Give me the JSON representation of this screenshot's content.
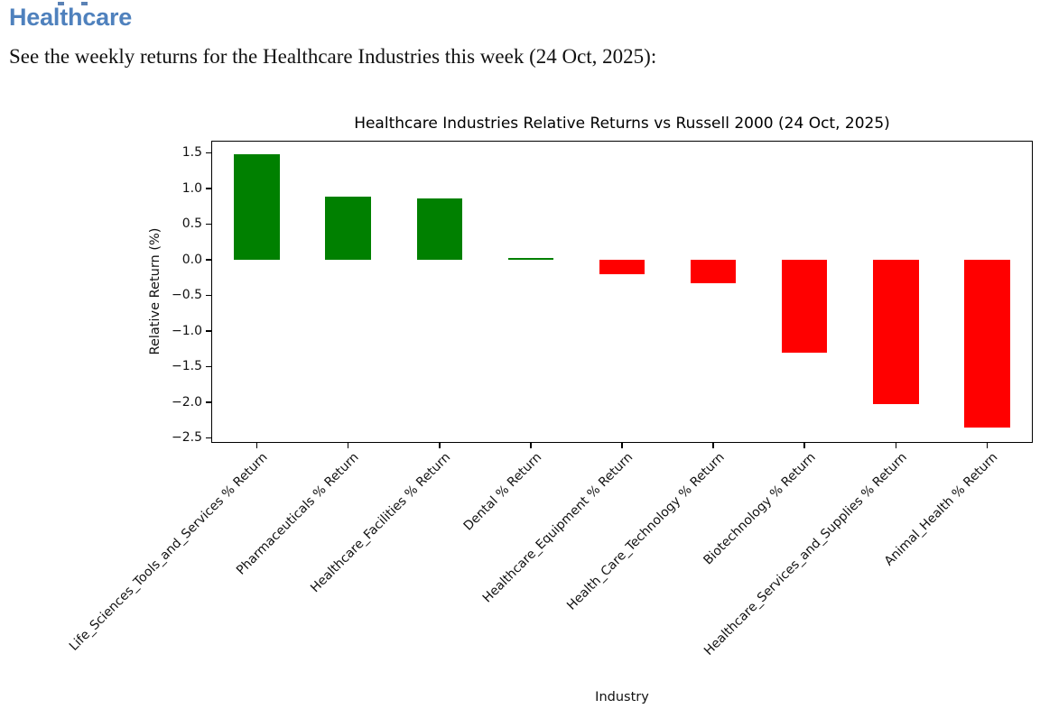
{
  "document": {
    "heading": "Healthcare",
    "intro": "See the weekly returns for the Healthcare Industries this week (24 Oct, 2025):"
  },
  "chart_data": {
    "type": "bar",
    "title": "Healthcare Industries Relative Returns vs Russell 2000 (24 Oct, 2025)",
    "xlabel": "Industry",
    "ylabel": "Relative Return (%)",
    "categories": [
      "Life_Sciences_Tools_and_Services % Return",
      "Pharmaceuticals % Return",
      "Healthcare_Facilities % Return",
      "Dental % Return",
      "Healthcare_Equipment % Return",
      "Health_Care_Technology % Return",
      "Biotechnology % Return",
      "Healthcare_Services_and_Supplies % Return",
      "Animal_Health % Return"
    ],
    "values": [
      1.48,
      0.89,
      0.86,
      0.03,
      -0.2,
      -0.33,
      -1.3,
      -2.03,
      -2.35
    ],
    "yticks": [
      1.5,
      1.0,
      0.5,
      0.0,
      -0.5,
      -1.0,
      -1.5,
      -2.0,
      -2.5
    ],
    "ylim": [
      -2.57,
      1.67
    ],
    "bar_relative_width": 0.5,
    "grid": false,
    "legend": false,
    "positive_color": "#008000",
    "negative_color": "#ff0000"
  },
  "colors": {
    "heading": "#4f81bd",
    "clipped_fragment": "#5b82b5",
    "body_text": "#111111",
    "axis": "#000000"
  }
}
